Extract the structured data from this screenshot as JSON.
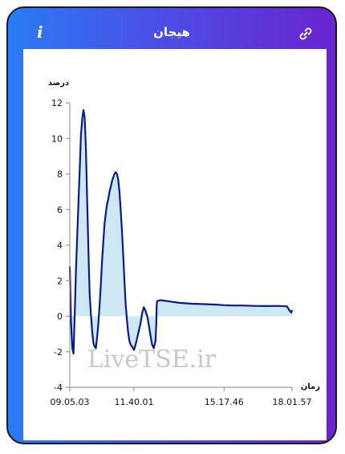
{
  "header": {
    "title": "هیجان",
    "info_icon": "info-icon",
    "link_icon": "link-icon"
  },
  "colors": {
    "gradient_start": "#2a7bf6",
    "gradient_end": "#6a23d0",
    "line": "#0a1a8c",
    "fill": "#cde8f3"
  },
  "watermark": "LiveTSE.ir",
  "chart_data": {
    "type": "area",
    "ylabel": "درصد",
    "xlabel": "زمان",
    "ylim": [
      -4,
      12
    ],
    "yticks": [
      -4,
      -2,
      0,
      2,
      4,
      6,
      8,
      10,
      12
    ],
    "xticks": [
      "09.05.03",
      "11.40.01",
      "15.17.46",
      "18.01.57"
    ],
    "grid": false,
    "legend": "none",
    "series": [
      {
        "x": [
          "09.05.03",
          "09.08.00",
          "09.11.00",
          "09.14.00",
          "09.17.00",
          "09.20.00",
          "09.23.00",
          "09.26.00",
          "09.29.00",
          "09.32.00",
          "09.35.00",
          "09.38.00",
          "09.41.00",
          "09.44.00",
          "09.47.00",
          "09.50.00",
          "09.53.00",
          "09.56.00",
          "09.59.00",
          "10.02.00",
          "10.05.00",
          "10.08.00",
          "10.11.00",
          "10.14.00",
          "10.17.00",
          "10.20.00",
          "10.23.00",
          "10.26.00",
          "10.29.00",
          "10.32.00",
          "10.35.00",
          "10.38.00",
          "10.41.00",
          "10.44.00",
          "10.47.00",
          "10.50.00",
          "10.53.00",
          "10.56.00",
          "10.59.00",
          "11.02.00",
          "11.05.00",
          "11.08.00",
          "11.11.00",
          "11.14.00",
          "11.17.00",
          "11.20.00",
          "11.23.00",
          "11.26.00",
          "11.29.00",
          "11.32.00",
          "11.35.00",
          "11.38.00",
          "11.40.01",
          "11.44.00",
          "11.48.00",
          "11.52.00",
          "11.56.00",
          "12.00.00",
          "12.04.00",
          "12.08.00",
          "12.12.00",
          "12.16.00",
          "12.20.00",
          "12.24.00",
          "12.28.00",
          "12.32.00",
          "12.34.00",
          "12.35.00",
          "12.36.00",
          "12.45.00",
          "13.00.00",
          "13.30.00",
          "14.00.00",
          "14.30.00",
          "15.00.00",
          "15.17.46",
          "15.40.00",
          "16.00.00",
          "16.30.00",
          "17.00.00",
          "17.30.00",
          "17.50.00",
          "17.55.00",
          "18.00.00",
          "18.01.57"
        ],
        "y": [
          2.8,
          -0.3,
          -1.8,
          -2.1,
          0.2,
          2.6,
          4.6,
          6.4,
          8.3,
          10.2,
          11.1,
          11.6,
          11.2,
          9.4,
          6.6,
          3.7,
          1.3,
          0.1,
          -0.8,
          -1.5,
          -1.7,
          -1.8,
          -1.2,
          -0.4,
          0.6,
          1.8,
          3.1,
          4.2,
          5.2,
          5.8,
          6.3,
          6.6,
          7.0,
          7.3,
          7.6,
          7.8,
          8.0,
          8.1,
          8.0,
          7.7,
          7.0,
          6.0,
          4.8,
          3.5,
          2.0,
          0.7,
          -0.2,
          -0.9,
          -1.4,
          -1.6,
          -1.7,
          -1.8,
          -1.9,
          -1.6,
          -1.2,
          -0.8,
          -0.4,
          0.2,
          0.5,
          0.3,
          0.0,
          -0.5,
          -1.1,
          -1.6,
          -1.8,
          -1.4,
          -0.4,
          0.6,
          0.85,
          0.9,
          0.85,
          0.75,
          0.7,
          0.68,
          0.65,
          0.62,
          0.6,
          0.6,
          0.58,
          0.57,
          0.58,
          0.55,
          0.35,
          0.2,
          0.35
        ]
      }
    ]
  }
}
